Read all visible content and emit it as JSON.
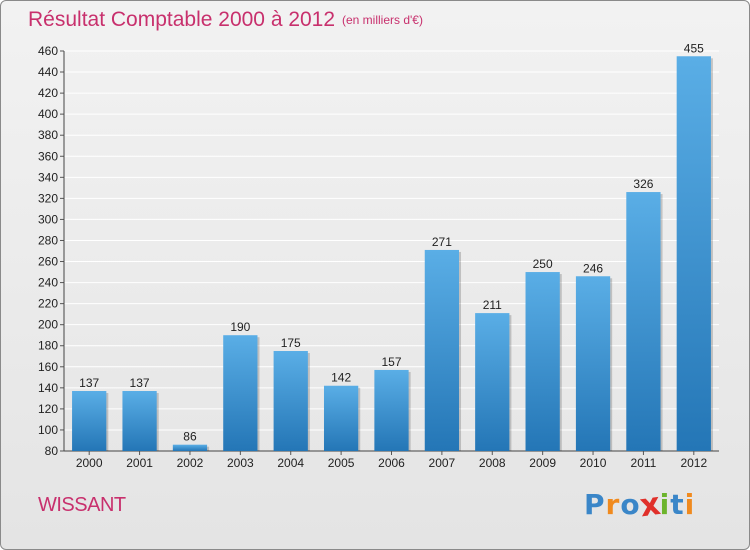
{
  "header": {
    "title": "Résultat Comptable 2000 à 2012",
    "subtitle": "(en milliers d'€)"
  },
  "footer": {
    "place": "WISSANT",
    "logo_text": "Proxiti"
  },
  "colors": {
    "title": "#c8306d",
    "bar_top": "#5aaee6",
    "bar_bottom": "#2476b6",
    "grid": "#ffffff",
    "logo": [
      "#3a86c8",
      "#f08a1e",
      "#3a86c8",
      "#e0302a",
      "#6cb42c",
      "#3a86c8",
      "#f08a1e"
    ]
  },
  "chart_data": {
    "type": "bar",
    "categories": [
      "2000",
      "2001",
      "2002",
      "2003",
      "2004",
      "2005",
      "2006",
      "2007",
      "2008",
      "2009",
      "2010",
      "2011",
      "2012"
    ],
    "values": [
      137,
      137,
      86,
      190,
      175,
      142,
      157,
      271,
      211,
      250,
      246,
      326,
      455
    ],
    "ylim": [
      80,
      460
    ],
    "yticks": [
      80,
      100,
      120,
      140,
      160,
      180,
      200,
      220,
      240,
      260,
      280,
      300,
      320,
      340,
      360,
      380,
      400,
      420,
      440,
      460
    ],
    "grid": true,
    "data_labels": true
  }
}
